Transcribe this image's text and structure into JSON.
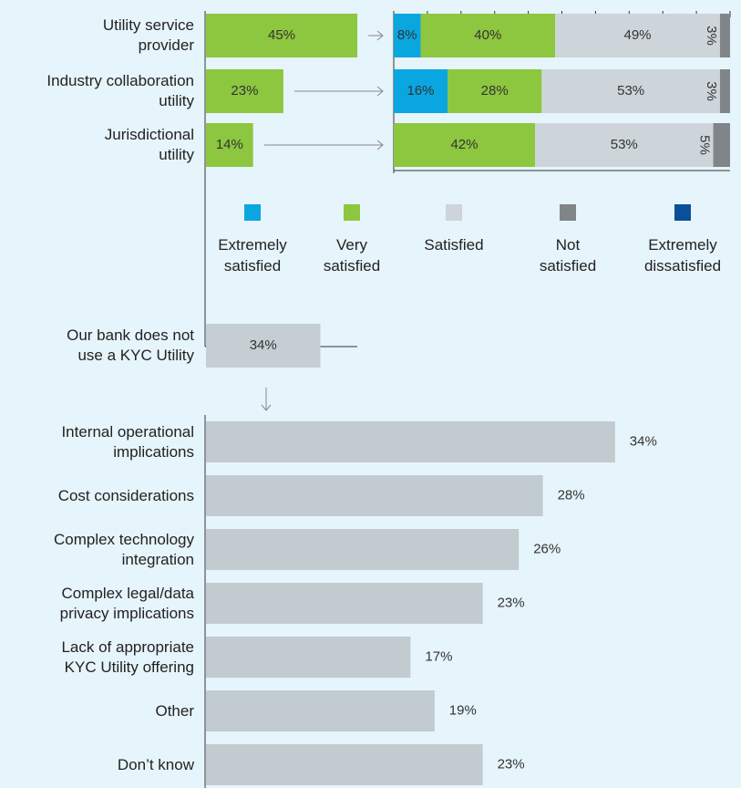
{
  "chart_data": [
    {
      "type": "bar",
      "orientation": "horizontal",
      "categories": [
        "Utility service\nprovider",
        "Industry collaboration\nutility",
        "Jurisdictional\nutility"
      ],
      "values": [
        45,
        23,
        14
      ],
      "value_labels": [
        "45%",
        "23%",
        "14%"
      ],
      "color": "#8dc63f"
    },
    {
      "type": "stacked_bar",
      "orientation": "horizontal",
      "xlim": [
        0,
        100
      ],
      "xticks": [
        0,
        10,
        20,
        30,
        40,
        50,
        60,
        70,
        80,
        90,
        100
      ],
      "series": [
        {
          "name": "Extremely\nsatisfied",
          "color": "#0aa6e0",
          "values": [
            8,
            16,
            null
          ],
          "value_labels": [
            "8%",
            "16%",
            null
          ]
        },
        {
          "name": "Very\nsatisfied",
          "color": "#8dc63f",
          "values": [
            40,
            28,
            42
          ],
          "value_labels": [
            "40%",
            "28%",
            "42%"
          ]
        },
        {
          "name": "Satisfied",
          "color": "#cdd5da",
          "values": [
            49,
            53,
            53
          ],
          "value_labels": [
            "49%",
            "53%",
            "53%"
          ]
        },
        {
          "name": "Not\nsatisfied",
          "color": "#808589",
          "values": [
            3,
            3,
            5
          ],
          "value_labels": [
            "3%",
            "3%",
            "5%"
          ]
        },
        {
          "name": "Extremely\ndissatisfied",
          "color": "#0a4f9a",
          "values": [
            null,
            null,
            null
          ],
          "value_labels": [
            null,
            null,
            null
          ]
        }
      ]
    },
    {
      "type": "bar",
      "orientation": "horizontal",
      "categories": [
        "Our bank does not\nuse a KYC Utility"
      ],
      "values": [
        34
      ],
      "value_labels": [
        "34%"
      ],
      "color": "#c5ced3"
    },
    {
      "type": "bar",
      "orientation": "horizontal",
      "label_position": "outside",
      "categories": [
        "Internal operational\nimplications",
        "Cost considerations",
        "Complex technology\nintegration",
        "Complex legal/data\nprivacy implications",
        "Lack of appropriate\nKYC Utility offering",
        "Other",
        "Don’t know"
      ],
      "values": [
        34,
        28,
        26,
        23,
        17,
        19,
        23
      ],
      "value_labels": [
        "34%",
        "28%",
        "26%",
        "23%",
        "17%",
        "19%",
        "23%"
      ],
      "color": "#c2cbd0"
    }
  ]
}
